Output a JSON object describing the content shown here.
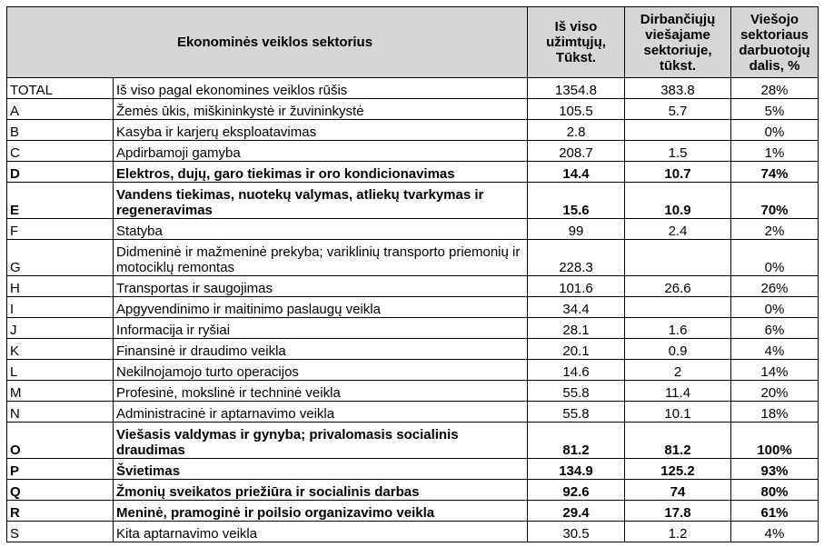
{
  "headers": {
    "sector": "Ekonominės veiklos sektorius",
    "total_employed": [
      "Iš viso",
      "užimtųjų,",
      "Tūkst."
    ],
    "public_employed": [
      "Dirbančiųjų",
      "viešajame",
      "sektoriuje,",
      "tūkst."
    ],
    "public_share": [
      "Viešojo",
      "sektoriaus",
      "darbuotojų",
      "dalis, %"
    ]
  },
  "rows": [
    {
      "code": "TOTAL",
      "name": "Iš viso pagal ekonomines veiklos rūšis",
      "total": "1354.8",
      "public": "383.8",
      "share": "28%",
      "bold": false
    },
    {
      "code": "A",
      "name": "Žemės ūkis, miškininkystė ir žuvininkystė",
      "total": "105.5",
      "public": "5.7",
      "share": "5%",
      "bold": false
    },
    {
      "code": "B",
      "name": "Kasyba ir karjerų eksploatavimas",
      "total": "2.8",
      "public": "",
      "share": "0%",
      "bold": false
    },
    {
      "code": "C",
      "name": "Apdirbamoji gamyba",
      "total": "208.7",
      "public": "1.5",
      "share": "1%",
      "bold": false
    },
    {
      "code": "D",
      "name": "Elektros, dujų, garo tiekimas ir oro kondicionavimas",
      "total": "14.4",
      "public": "10.7",
      "share": "74%",
      "bold": true
    },
    {
      "code": "E",
      "name": "Vandens tiekimas, nuotekų valymas, atliekų tvarkymas ir regeneravimas",
      "total": "15.6",
      "public": "10.9",
      "share": "70%",
      "bold": true
    },
    {
      "code": "F",
      "name": "Statyba",
      "total": "99",
      "public": "2.4",
      "share": "2%",
      "bold": false
    },
    {
      "code": "G",
      "name": "Didmeninė ir mažmeninė prekyba; variklinių transporto priemonių ir motociklų remontas",
      "total": "228.3",
      "public": "",
      "share": "0%",
      "bold": false
    },
    {
      "code": "H",
      "name": "Transportas ir saugojimas",
      "total": "101.6",
      "public": "26.6",
      "share": "26%",
      "bold": false
    },
    {
      "code": "I",
      "name": "Apgyvendinimo ir maitinimo paslaugų veikla",
      "total": "34.4",
      "public": "",
      "share": "0%",
      "bold": false
    },
    {
      "code": "J",
      "name": "Informacija ir ryšiai",
      "total": "28.1",
      "public": "1.6",
      "share": "6%",
      "bold": false
    },
    {
      "code": "K",
      "name": "Finansinė ir draudimo veikla",
      "total": "20.1",
      "public": "0.9",
      "share": "4%",
      "bold": false
    },
    {
      "code": "L",
      "name": "Nekilnojamojo turto operacijos",
      "total": "14.6",
      "public": "2",
      "share": "14%",
      "bold": false
    },
    {
      "code": "M",
      "name": "Profesinė, mokslinė ir techninė veikla",
      "total": "55.8",
      "public": "11.4",
      "share": "20%",
      "bold": false
    },
    {
      "code": "N",
      "name": "Administracinė ir aptarnavimo veikla",
      "total": "55.8",
      "public": "10.1",
      "share": "18%",
      "bold": false
    },
    {
      "code": "O",
      "name": "Viešasis valdymas ir gynyba; privalomasis socialinis draudimas",
      "total": "81.2",
      "public": "81.2",
      "share": "100%",
      "bold": true
    },
    {
      "code": "P",
      "name": "Švietimas",
      "total": "134.9",
      "public": "125.2",
      "share": "93%",
      "bold": true
    },
    {
      "code": "Q",
      "name": "Žmonių sveikatos priežiūra ir socialinis darbas",
      "total": "92.6",
      "public": "74",
      "share": "80%",
      "bold": true
    },
    {
      "code": "R",
      "name": "Meninė, pramoginė ir poilsio organizavimo veikla",
      "total": "29.4",
      "public": "17.8",
      "share": "61%",
      "bold": true
    },
    {
      "code": "S",
      "name": "Kita aptarnavimo veikla",
      "total": "30.5",
      "public": "1.2",
      "share": "4%",
      "bold": false
    }
  ]
}
